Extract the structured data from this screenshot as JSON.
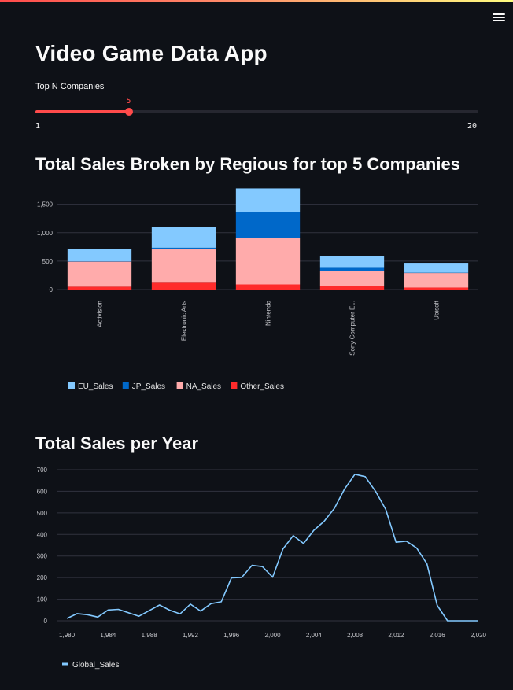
{
  "header": {
    "menu_icon": "hamburger-icon"
  },
  "app": {
    "title": "Video Game Data App"
  },
  "slider": {
    "label": "Top N Companies",
    "min": 1,
    "max": 20,
    "value": 5,
    "min_label": "1",
    "max_label": "20",
    "value_label": "5",
    "accent": "#ff4b4b"
  },
  "chart1": {
    "title": "Total Sales Broken by Regious for top 5 Companies"
  },
  "chart2": {
    "title": "Total Sales per Year"
  },
  "chart_data": [
    {
      "type": "bar",
      "stacked": true,
      "title": "Total Sales Broken by Regious for top 5 Companies",
      "categories": [
        "Activision",
        "Electronic Arts",
        "Nintendo",
        "Sony Computer E...",
        "Ubisoft"
      ],
      "series": [
        {
          "name": "Other_Sales",
          "color": "#ff2b2b",
          "values": [
            50,
            120,
            90,
            60,
            35
          ]
        },
        {
          "name": "NA_Sales",
          "color": "#ffabab",
          "values": [
            440,
            600,
            820,
            260,
            255
          ]
        },
        {
          "name": "JP_Sales",
          "color": "#0068c9",
          "values": [
            5,
            15,
            460,
            75,
            5
          ]
        },
        {
          "name": "EU_Sales",
          "color": "#83c9ff",
          "values": [
            215,
            370,
            410,
            190,
            175
          ]
        }
      ],
      "legend_order": [
        "EU_Sales",
        "JP_Sales",
        "NA_Sales",
        "Other_Sales"
      ],
      "y_ticks": [
        0,
        500,
        1000,
        1500
      ],
      "y_tick_labels": [
        "0",
        "500",
        "1,000",
        "1,500"
      ],
      "ylim": [
        0,
        1800
      ],
      "grid": true,
      "legend_position": "bottom-left"
    },
    {
      "type": "line",
      "title": "Total Sales per Year",
      "series": [
        {
          "name": "Global_Sales",
          "color": "#83c9ff",
          "x": [
            1980,
            1981,
            1982,
            1983,
            1984,
            1985,
            1986,
            1987,
            1988,
            1989,
            1990,
            1991,
            1992,
            1993,
            1994,
            1995,
            1996,
            1997,
            1998,
            1999,
            2000,
            2001,
            2002,
            2003,
            2004,
            2005,
            2006,
            2007,
            2008,
            2009,
            2010,
            2011,
            2012,
            2013,
            2014,
            2015,
            2016,
            2017,
            2018,
            2019,
            2020
          ],
          "y": [
            11,
            33,
            28,
            17,
            50,
            53,
            37,
            21,
            47,
            73,
            49,
            32,
            77,
            45,
            79,
            88,
            199,
            201,
            257,
            251,
            202,
            333,
            395,
            358,
            419,
            461,
            521,
            611,
            679,
            668,
            600,
            516,
            364,
            369,
            337,
            264,
            71,
            0,
            0,
            0,
            0
          ]
        }
      ],
      "x_ticks": [
        1980,
        1984,
        1988,
        1992,
        1996,
        2000,
        2004,
        2008,
        2012,
        2016,
        2020
      ],
      "x_tick_labels": [
        "1,980",
        "1,984",
        "1,988",
        "1,992",
        "1,996",
        "2,000",
        "2,004",
        "2,008",
        "2,012",
        "2,016",
        "2,020"
      ],
      "y_ticks": [
        0,
        100,
        200,
        300,
        400,
        500,
        600,
        700
      ],
      "y_tick_labels": [
        "0",
        "100",
        "200",
        "300",
        "400",
        "500",
        "600",
        "700"
      ],
      "xlim": [
        1979,
        2020
      ],
      "ylim": [
        0,
        700
      ],
      "grid": true,
      "legend_position": "bottom-left"
    }
  ]
}
